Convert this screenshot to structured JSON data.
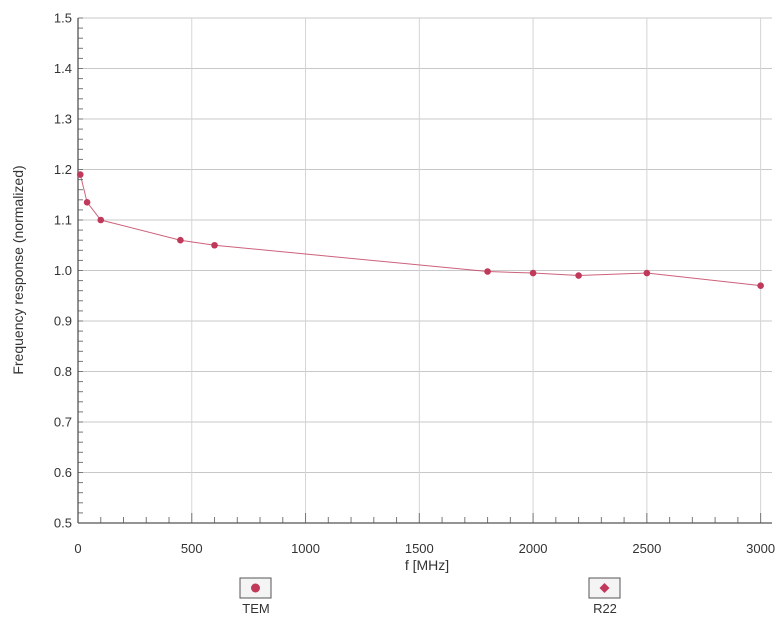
{
  "chart_data": {
    "type": "line",
    "xlabel": "f [MHz]",
    "ylabel": "Frequency response (normalized)",
    "xlim": [
      0,
      3050
    ],
    "ylim": [
      0.5,
      1.5
    ],
    "x_ticks": [
      0,
      500,
      1000,
      1500,
      2000,
      2500,
      3000
    ],
    "y_ticks": [
      0.5,
      0.6,
      0.7,
      0.8,
      0.9,
      1.0,
      1.1,
      1.2,
      1.3,
      1.4,
      1.5
    ],
    "x_tick_labels": [
      "0",
      "500",
      "1000",
      "1500",
      "2000",
      "2500",
      "3000"
    ],
    "y_tick_labels": [
      "0.5",
      "0.6",
      "0.7",
      "0.8",
      "0.9",
      "1.0",
      "1.1",
      "1.2",
      "1.3",
      "1.4",
      "1.5"
    ],
    "grid": true,
    "legend_position": "bottom",
    "series": [
      {
        "name": "TEM",
        "marker": "circle",
        "color": "#c0395a",
        "x": [
          10,
          40,
          100,
          450,
          600,
          1800,
          2000,
          2200,
          2500,
          3000
        ],
        "y": [
          1.19,
          1.135,
          1.1,
          1.06,
          1.05,
          0.998,
          0.995,
          0.99,
          0.995,
          0.97
        ]
      },
      {
        "name": "R22",
        "marker": "diamond",
        "color": "#c0395a",
        "x": [],
        "y": []
      }
    ]
  }
}
